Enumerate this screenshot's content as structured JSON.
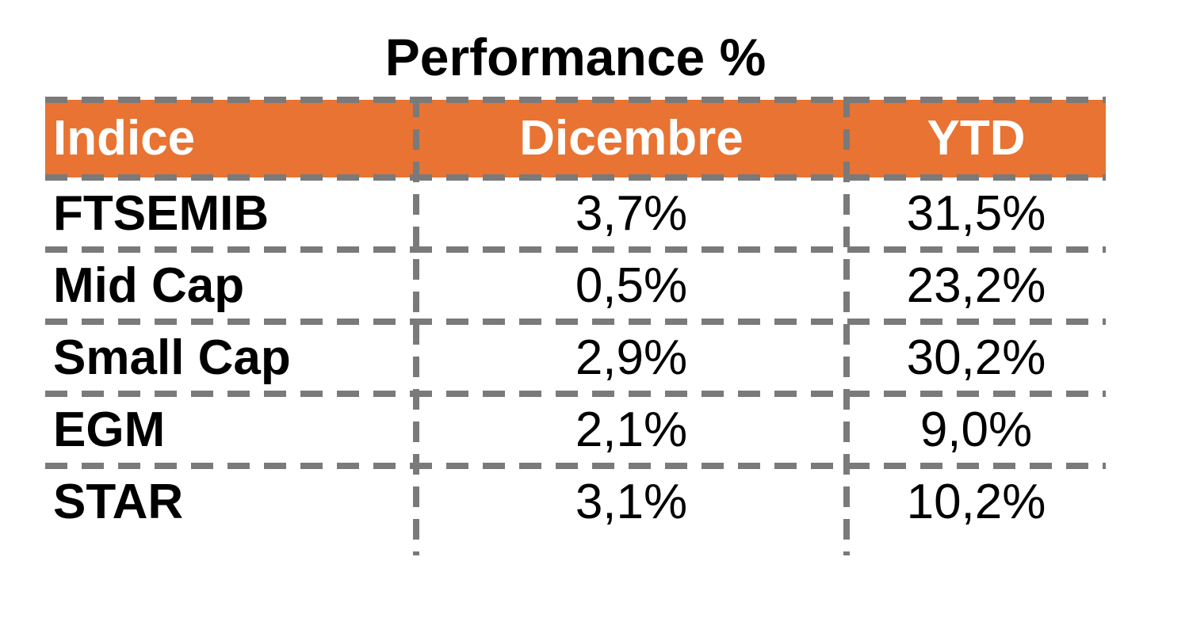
{
  "title": "Performance %",
  "table": {
    "columns": [
      "Indice",
      "Dicembre",
      "YTD"
    ],
    "rows": [
      {
        "indice": "FTSEMIB",
        "dicembre": "3,7%",
        "ytd": "31,5%"
      },
      {
        "indice": "Mid Cap",
        "dicembre": "0,5%",
        "ytd": "23,2%"
      },
      {
        "indice": "Small Cap",
        "dicembre": "2,9%",
        "ytd": "30,2%"
      },
      {
        "indice": "EGM",
        "dicembre": "2,1%",
        "ytd": "9,0%"
      },
      {
        "indice": "STAR",
        "dicembre": "3,1%",
        "ytd": "10,2%"
      }
    ]
  },
  "colors": {
    "header_background": "#E87332",
    "header_text": "#FFFFFF",
    "grid_border": "#7A7A7A",
    "body_text": "#000000",
    "page_background": "#FFFFFF"
  },
  "chart_data": {
    "type": "table",
    "title": "Performance %",
    "columns": [
      "Indice",
      "Dicembre",
      "YTD"
    ],
    "categories": [
      "FTSEMIB",
      "Mid Cap",
      "Small Cap",
      "EGM",
      "STAR"
    ],
    "series": [
      {
        "name": "Dicembre",
        "values": [
          3.7,
          0.5,
          2.9,
          2.1,
          3.1
        ]
      },
      {
        "name": "YTD",
        "values": [
          31.5,
          23.2,
          30.2,
          9.0,
          10.2
        ]
      }
    ],
    "value_format": "percent, comma decimal separator (it-IT)",
    "layout_hints": {
      "header_fill": "#E87332",
      "grid_style": "dashed gray, internal column dividers and row separators only",
      "title_position": "top center"
    }
  }
}
